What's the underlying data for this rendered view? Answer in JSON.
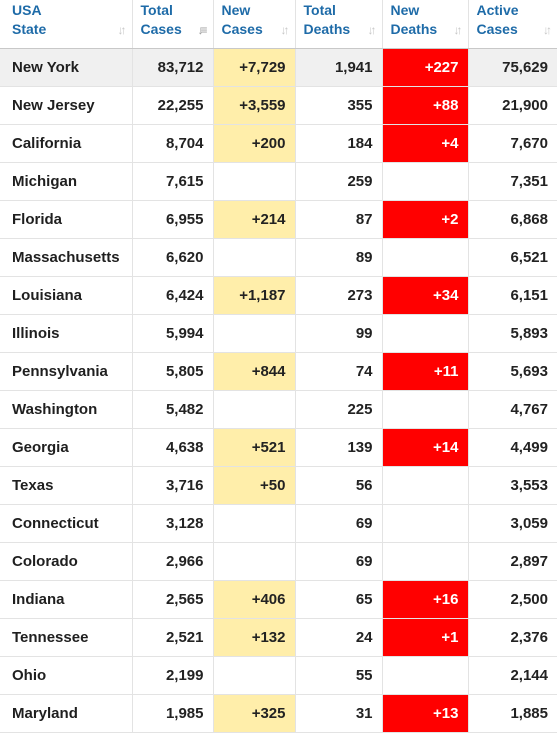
{
  "colors": {
    "header_text": "#1e6ba8",
    "new_cases_bg": "#ffeeaa",
    "new_deaths_bg": "#ff0000",
    "top_row_bg": "#f0f0f0"
  },
  "columns": [
    {
      "line1": "USA",
      "line2": "State",
      "sort_icon": "sort-icon"
    },
    {
      "line1": "Total",
      "line2": "Cases",
      "sort_icon": "sort-desc-icon"
    },
    {
      "line1": "New",
      "line2": "Cases",
      "sort_icon": "sort-icon"
    },
    {
      "line1": "Total",
      "line2": "Deaths",
      "sort_icon": "sort-icon"
    },
    {
      "line1": "New",
      "line2": "Deaths",
      "sort_icon": "sort-icon"
    },
    {
      "line1": "Active",
      "line2": "Cases",
      "sort_icon": "sort-icon"
    }
  ],
  "rows": [
    {
      "state": "New York",
      "total_cases": "83,712",
      "new_cases": "+7,729",
      "total_deaths": "1,941",
      "new_deaths": "+227",
      "active_cases": "75,629"
    },
    {
      "state": "New Jersey",
      "total_cases": "22,255",
      "new_cases": "+3,559",
      "total_deaths": "355",
      "new_deaths": "+88",
      "active_cases": "21,900"
    },
    {
      "state": "California",
      "total_cases": "8,704",
      "new_cases": "+200",
      "total_deaths": "184",
      "new_deaths": "+4",
      "active_cases": "7,670"
    },
    {
      "state": "Michigan",
      "total_cases": "7,615",
      "new_cases": "",
      "total_deaths": "259",
      "new_deaths": "",
      "active_cases": "7,351"
    },
    {
      "state": "Florida",
      "total_cases": "6,955",
      "new_cases": "+214",
      "total_deaths": "87",
      "new_deaths": "+2",
      "active_cases": "6,868"
    },
    {
      "state": "Massachusetts",
      "total_cases": "6,620",
      "new_cases": "",
      "total_deaths": "89",
      "new_deaths": "",
      "active_cases": "6,521"
    },
    {
      "state": "Louisiana",
      "total_cases": "6,424",
      "new_cases": "+1,187",
      "total_deaths": "273",
      "new_deaths": "+34",
      "active_cases": "6,151"
    },
    {
      "state": "Illinois",
      "total_cases": "5,994",
      "new_cases": "",
      "total_deaths": "99",
      "new_deaths": "",
      "active_cases": "5,893"
    },
    {
      "state": "Pennsylvania",
      "total_cases": "5,805",
      "new_cases": "+844",
      "total_deaths": "74",
      "new_deaths": "+11",
      "active_cases": "5,693"
    },
    {
      "state": "Washington",
      "total_cases": "5,482",
      "new_cases": "",
      "total_deaths": "225",
      "new_deaths": "",
      "active_cases": "4,767"
    },
    {
      "state": "Georgia",
      "total_cases": "4,638",
      "new_cases": "+521",
      "total_deaths": "139",
      "new_deaths": "+14",
      "active_cases": "4,499"
    },
    {
      "state": "Texas",
      "total_cases": "3,716",
      "new_cases": "+50",
      "total_deaths": "56",
      "new_deaths": "",
      "active_cases": "3,553"
    },
    {
      "state": "Connecticut",
      "total_cases": "3,128",
      "new_cases": "",
      "total_deaths": "69",
      "new_deaths": "",
      "active_cases": "3,059"
    },
    {
      "state": "Colorado",
      "total_cases": "2,966",
      "new_cases": "",
      "total_deaths": "69",
      "new_deaths": "",
      "active_cases": "2,897"
    },
    {
      "state": "Indiana",
      "total_cases": "2,565",
      "new_cases": "+406",
      "total_deaths": "65",
      "new_deaths": "+16",
      "active_cases": "2,500"
    },
    {
      "state": "Tennessee",
      "total_cases": "2,521",
      "new_cases": "+132",
      "total_deaths": "24",
      "new_deaths": "+1",
      "active_cases": "2,376"
    },
    {
      "state": "Ohio",
      "total_cases": "2,199",
      "new_cases": "",
      "total_deaths": "55",
      "new_deaths": "",
      "active_cases": "2,144"
    },
    {
      "state": "Maryland",
      "total_cases": "1,985",
      "new_cases": "+325",
      "total_deaths": "31",
      "new_deaths": "+13",
      "active_cases": "1,885"
    }
  ]
}
